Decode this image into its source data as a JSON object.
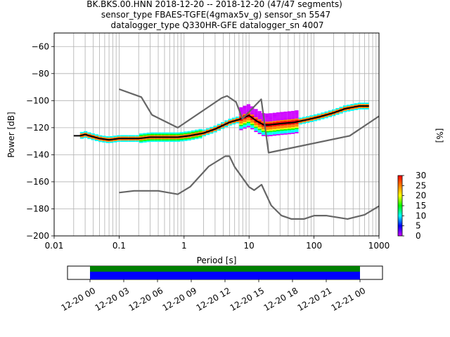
{
  "chart_data": {
    "type": "heatmap",
    "title_lines": [
      "BK.BKS.00.HNN   2018-12-20 -- 2018-12-20  (47/47 segments)",
      "sensor_type FBAES-TGFE(4gmax5v_g) sensor_sn 5547",
      "datalogger_type Q330HR-GFE datalogger_sn 4007"
    ],
    "xlabel": "Period [s]",
    "ylabel": "Power [dB]",
    "x_scale": "log",
    "xlim": [
      0.01,
      1000
    ],
    "ylim": [
      -200,
      -50
    ],
    "x_ticks": [
      0.01,
      0.1,
      1,
      10,
      100,
      1000
    ],
    "x_tick_labels": [
      "0.01",
      "0.1",
      "1",
      "10",
      "100",
      "1000"
    ],
    "y_ticks": [
      -200,
      -180,
      -160,
      -140,
      -120,
      -100,
      -80,
      -60
    ],
    "y_tick_labels": [
      "−200",
      "−180",
      "−160",
      "−140",
      "−120",
      "−100",
      "−80",
      "−60"
    ],
    "grid": true,
    "colorbar": {
      "label": "[%]",
      "range": [
        0,
        30
      ],
      "ticks": [
        0,
        5,
        10,
        15,
        20,
        25,
        30
      ],
      "tick_labels": [
        "0",
        "5",
        "10",
        "15",
        "20",
        "25",
        "30"
      ],
      "colors": [
        "#ffffff",
        "#ce00ff",
        "#0000ff",
        "#00ffff",
        "#00ff00",
        "#ffff00",
        "#ff7f00",
        "#ff0000"
      ]
    },
    "series": [
      {
        "role": "mode",
        "color": "#000000",
        "x": [
          0.02,
          0.025,
          0.03,
          0.035,
          0.05,
          0.07,
          0.1,
          0.2,
          0.3,
          0.5,
          0.8,
          1.2,
          2,
          3,
          5,
          7,
          10,
          13,
          17,
          20,
          30,
          50,
          80,
          120,
          200,
          300,
          500,
          700
        ],
        "y": [
          -126,
          -126,
          -125,
          -126,
          -128,
          -129,
          -128,
          -128,
          -127,
          -127,
          -127,
          -126,
          -124,
          -121,
          -116,
          -114,
          -111,
          -115,
          -118,
          -118,
          -117,
          -116,
          -114,
          -112,
          -109,
          -106,
          -104,
          -104
        ]
      },
      {
        "role": "noise-model-high",
        "color": "#666666",
        "x": [
          0.1,
          0.22,
          0.32,
          0.8,
          3.8,
          4.6,
          6.3,
          7.9,
          15.4,
          20,
          354.8,
          1000
        ],
        "y": [
          -91.5,
          -97.4,
          -110.5,
          -120,
          -98,
          -96.5,
          -101,
          -113.5,
          -99,
          -138.5,
          -126,
          -111.5
        ]
      },
      {
        "role": "noise-model-low",
        "color": "#666666",
        "x": [
          0.1,
          0.17,
          0.4,
          0.8,
          1.24,
          2.4,
          4.3,
          5,
          6,
          10,
          12,
          15.6,
          21.9,
          31.6,
          45,
          70,
          101,
          154,
          328,
          600,
          1000
        ],
        "y": [
          -168,
          -166.7,
          -166.7,
          -169.2,
          -163.7,
          -148.6,
          -141.1,
          -141.1,
          -149,
          -163.8,
          -166.2,
          -162.1,
          -177.5,
          -185,
          -187.5,
          -187.5,
          -185,
          -185,
          -187.5,
          -184.4,
          -178
        ]
      }
    ]
  },
  "timeline": {
    "tick_labels": [
      "12-20 00",
      "12-20 03",
      "12-20 06",
      "12-20 09",
      "12-20 12",
      "12-20 15",
      "12-20 18",
      "12-20 21",
      "12-21 00"
    ],
    "range_hours": [
      -2,
      26
    ],
    "data_coverage_hours": [
      0,
      24
    ],
    "gap_coverage_hours": [
      0,
      24
    ],
    "data_color": "#0000ff",
    "gap_color": "#008000"
  }
}
